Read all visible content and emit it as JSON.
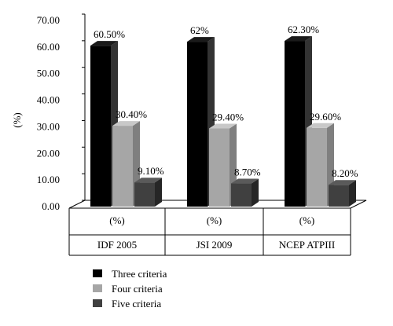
{
  "chart_data": {
    "type": "bar",
    "ylabel": "(%)",
    "ylim": [
      0,
      70
    ],
    "y_ticks": [
      "0.00",
      "10.00",
      "20.00",
      "30.00",
      "40.00",
      "50.00",
      "60.00",
      "70.00"
    ],
    "groups": [
      {
        "sub_label": "(%)",
        "label": "IDF 2005"
      },
      {
        "sub_label": "(%)",
        "label": "JSI 2009"
      },
      {
        "sub_label": "(%)",
        "label": "NCEP ATPIII"
      }
    ],
    "series": [
      {
        "name": "Three criteria",
        "color": "#000000",
        "side_color": "#333333",
        "top_color": "#1a1a1a",
        "values": [
          60.5,
          62.0,
          62.3
        ],
        "value_labels": [
          "60.50%",
          "62%",
          "62.30%"
        ]
      },
      {
        "name": "Four criteria",
        "color": "#a6a6a6",
        "side_color": "#7f7f7f",
        "top_color": "#c8c8c8",
        "values": [
          30.4,
          29.4,
          29.6
        ],
        "value_labels": [
          "30.40%",
          "29.40%",
          "29.60%"
        ]
      },
      {
        "name": "Five criteria",
        "color": "#404040",
        "side_color": "#262626",
        "top_color": "#5a5a5a",
        "values": [
          9.1,
          8.7,
          8.2
        ],
        "value_labels": [
          "9.10%",
          "8.70%",
          "8.20%"
        ]
      }
    ]
  }
}
